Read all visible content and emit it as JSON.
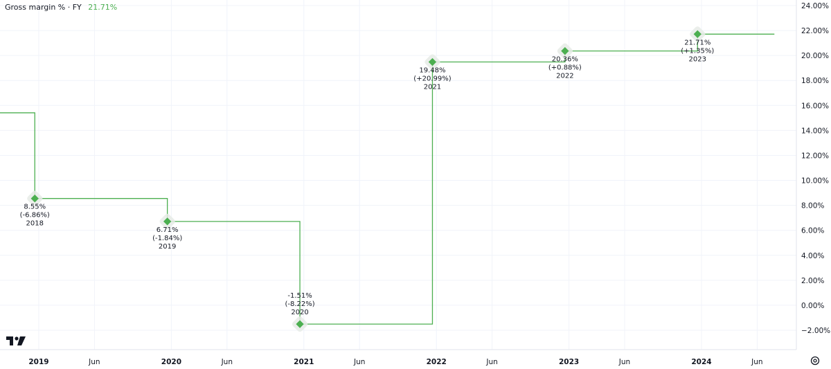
{
  "header": {
    "label": "Gross margin % · FY",
    "current_value": "21.71%"
  },
  "chart_data": {
    "type": "line",
    "step": true,
    "ylim": [
      -3,
      24.5
    ],
    "y_ticks": [
      24,
      22,
      20,
      18,
      16,
      14,
      12,
      10,
      8,
      6,
      4,
      2,
      0,
      -2
    ],
    "y_tick_labels": [
      "24.00%",
      "22.00%",
      "20.00%",
      "18.00%",
      "16.00%",
      "14.00%",
      "12.00%",
      "10.00%",
      "8.00%",
      "6.00%",
      "4.00%",
      "2.00%",
      "0.00%",
      "−2.00%"
    ],
    "x_tick_labels": [
      {
        "label": "2019",
        "major": true,
        "t": 2019.0
      },
      {
        "label": "Jun",
        "major": false,
        "t": 2019.42
      },
      {
        "label": "2020",
        "major": true,
        "t": 2020.0
      },
      {
        "label": "Jun",
        "major": false,
        "t": 2020.42
      },
      {
        "label": "2021",
        "major": true,
        "t": 2021.0
      },
      {
        "label": "Jun",
        "major": false,
        "t": 2021.42
      },
      {
        "label": "2022",
        "major": true,
        "t": 2022.0
      },
      {
        "label": "Jun",
        "major": false,
        "t": 2022.42
      },
      {
        "label": "2023",
        "major": true,
        "t": 2023.0
      },
      {
        "label": "Jun",
        "major": false,
        "t": 2023.42
      },
      {
        "label": "2024",
        "major": true,
        "t": 2024.0
      },
      {
        "label": "Jun",
        "major": false,
        "t": 2024.42
      }
    ],
    "prior_value": 15.41,
    "series": [
      {
        "points": [
          {
            "t": 2018.97,
            "value": 8.55,
            "label": "8.55%",
            "change": "(-6.86%)",
            "year": "2018"
          },
          {
            "t": 2019.97,
            "value": 6.71,
            "label": "6.71%",
            "change": "(-1.84%)",
            "year": "2019"
          },
          {
            "t": 2020.97,
            "value": -1.51,
            "label": "-1.51%",
            "change": "(-8.22%)",
            "year": "2020"
          },
          {
            "t": 2021.97,
            "value": 19.48,
            "label": "19.48%",
            "change": "(+20.99%)",
            "year": "2021"
          },
          {
            "t": 2022.97,
            "value": 20.36,
            "label": "20.36%",
            "change": "(+0.88%)",
            "year": "2022"
          },
          {
            "t": 2023.97,
            "value": 21.71,
            "label": "21.71%",
            "change": "(+1.35%)",
            "year": "2023"
          }
        ],
        "color": "#4caf50"
      }
    ],
    "x_end": 2024.55,
    "grid": true
  }
}
